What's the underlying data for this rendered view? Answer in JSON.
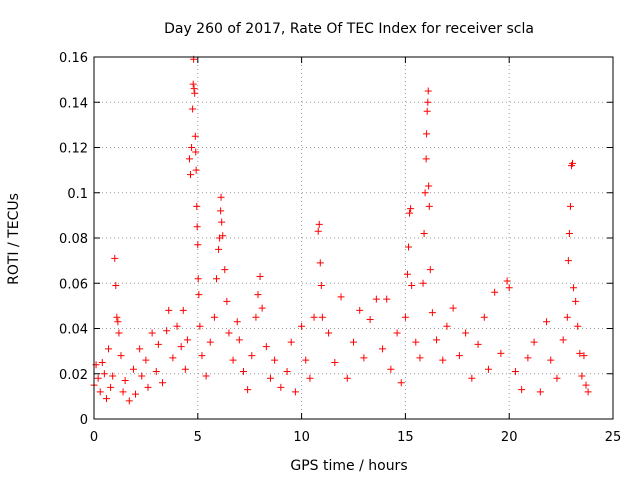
{
  "chart_data": {
    "type": "scatter",
    "title": "Day 260 of 2017, Rate Of TEC Index for receiver scla",
    "xlabel": "GPS time / hours",
    "ylabel": "ROTI / TECUs",
    "xlim": [
      0,
      25
    ],
    "ylim": [
      0,
      0.16
    ],
    "xticks": [
      "0",
      "5",
      "10",
      "15",
      "20",
      "25"
    ],
    "yticks": [
      "0",
      "0.02",
      "0.04",
      "0.06",
      "0.08",
      "0.1",
      "0.12",
      "0.14",
      "0.16"
    ],
    "grid": true,
    "legend": "none",
    "marker": "+",
    "color": "#ff0000",
    "series": [
      {
        "values": [
          [
            0.0,
            0.015
          ],
          [
            0.1,
            0.024
          ],
          [
            0.2,
            0.018
          ],
          [
            0.3,
            0.012
          ],
          [
            0.4,
            0.025
          ],
          [
            0.5,
            0.02
          ],
          [
            0.6,
            0.009
          ],
          [
            0.7,
            0.031
          ],
          [
            0.8,
            0.014
          ],
          [
            0.9,
            0.019
          ],
          [
            1.0,
            0.071
          ],
          [
            1.05,
            0.059
          ],
          [
            1.1,
            0.045
          ],
          [
            1.15,
            0.043
          ],
          [
            1.2,
            0.038
          ],
          [
            1.3,
            0.028
          ],
          [
            1.4,
            0.012
          ],
          [
            1.5,
            0.017
          ],
          [
            1.7,
            0.008
          ],
          [
            1.9,
            0.022
          ],
          [
            2.0,
            0.011
          ],
          [
            2.2,
            0.031
          ],
          [
            2.3,
            0.019
          ],
          [
            2.5,
            0.026
          ],
          [
            2.6,
            0.014
          ],
          [
            2.8,
            0.038
          ],
          [
            3.0,
            0.021
          ],
          [
            3.1,
            0.033
          ],
          [
            3.3,
            0.016
          ],
          [
            3.5,
            0.039
          ],
          [
            3.6,
            0.048
          ],
          [
            3.8,
            0.027
          ],
          [
            4.0,
            0.041
          ],
          [
            4.2,
            0.032
          ],
          [
            4.3,
            0.048
          ],
          [
            4.4,
            0.022
          ],
          [
            4.5,
            0.035
          ],
          [
            4.6,
            0.115
          ],
          [
            4.65,
            0.108
          ],
          [
            4.7,
            0.12
          ],
          [
            4.75,
            0.137
          ],
          [
            4.78,
            0.148
          ],
          [
            4.8,
            0.159
          ],
          [
            4.82,
            0.146
          ],
          [
            4.85,
            0.144
          ],
          [
            4.88,
            0.125
          ],
          [
            4.9,
            0.118
          ],
          [
            4.92,
            0.11
          ],
          [
            4.95,
            0.094
          ],
          [
            4.97,
            0.085
          ],
          [
            5.0,
            0.077
          ],
          [
            5.02,
            0.062
          ],
          [
            5.05,
            0.055
          ],
          [
            5.1,
            0.041
          ],
          [
            5.2,
            0.028
          ],
          [
            5.4,
            0.019
          ],
          [
            5.6,
            0.034
          ],
          [
            5.8,
            0.045
          ],
          [
            5.9,
            0.062
          ],
          [
            6.0,
            0.075
          ],
          [
            6.05,
            0.08
          ],
          [
            6.1,
            0.092
          ],
          [
            6.12,
            0.098
          ],
          [
            6.15,
            0.087
          ],
          [
            6.2,
            0.081
          ],
          [
            6.3,
            0.066
          ],
          [
            6.4,
            0.052
          ],
          [
            6.5,
            0.038
          ],
          [
            6.7,
            0.026
          ],
          [
            6.9,
            0.043
          ],
          [
            7.0,
            0.035
          ],
          [
            7.2,
            0.021
          ],
          [
            7.4,
            0.013
          ],
          [
            7.6,
            0.028
          ],
          [
            7.8,
            0.045
          ],
          [
            7.9,
            0.055
          ],
          [
            8.0,
            0.063
          ],
          [
            8.1,
            0.049
          ],
          [
            8.3,
            0.032
          ],
          [
            8.5,
            0.018
          ],
          [
            8.7,
            0.026
          ],
          [
            9.0,
            0.014
          ],
          [
            9.3,
            0.021
          ],
          [
            9.5,
            0.034
          ],
          [
            9.7,
            0.012
          ],
          [
            10.0,
            0.041
          ],
          [
            10.2,
            0.026
          ],
          [
            10.4,
            0.018
          ],
          [
            10.6,
            0.045
          ],
          [
            10.8,
            0.083
          ],
          [
            10.85,
            0.086
          ],
          [
            10.9,
            0.069
          ],
          [
            10.95,
            0.059
          ],
          [
            11.0,
            0.045
          ],
          [
            11.3,
            0.038
          ],
          [
            11.6,
            0.025
          ],
          [
            11.9,
            0.054
          ],
          [
            12.2,
            0.018
          ],
          [
            12.5,
            0.034
          ],
          [
            12.8,
            0.048
          ],
          [
            13.0,
            0.027
          ],
          [
            13.3,
            0.044
          ],
          [
            13.6,
            0.053
          ],
          [
            13.9,
            0.031
          ],
          [
            14.1,
            0.053
          ],
          [
            14.3,
            0.022
          ],
          [
            14.6,
            0.038
          ],
          [
            14.8,
            0.016
          ],
          [
            15.0,
            0.045
          ],
          [
            15.1,
            0.064
          ],
          [
            15.15,
            0.076
          ],
          [
            15.2,
            0.091
          ],
          [
            15.25,
            0.093
          ],
          [
            15.3,
            0.059
          ],
          [
            15.5,
            0.034
          ],
          [
            15.7,
            0.027
          ],
          [
            15.85,
            0.06
          ],
          [
            15.9,
            0.082
          ],
          [
            15.95,
            0.1
          ],
          [
            16.0,
            0.115
          ],
          [
            16.02,
            0.126
          ],
          [
            16.05,
            0.136
          ],
          [
            16.08,
            0.14
          ],
          [
            16.1,
            0.145
          ],
          [
            16.12,
            0.103
          ],
          [
            16.15,
            0.094
          ],
          [
            16.2,
            0.066
          ],
          [
            16.3,
            0.047
          ],
          [
            16.5,
            0.035
          ],
          [
            16.8,
            0.026
          ],
          [
            17.0,
            0.041
          ],
          [
            17.3,
            0.049
          ],
          [
            17.6,
            0.028
          ],
          [
            17.9,
            0.038
          ],
          [
            18.2,
            0.018
          ],
          [
            18.5,
            0.033
          ],
          [
            18.8,
            0.045
          ],
          [
            19.0,
            0.022
          ],
          [
            19.3,
            0.056
          ],
          [
            19.6,
            0.029
          ],
          [
            19.9,
            0.061
          ],
          [
            20.0,
            0.058
          ],
          [
            20.3,
            0.021
          ],
          [
            20.6,
            0.013
          ],
          [
            20.9,
            0.027
          ],
          [
            21.2,
            0.034
          ],
          [
            21.5,
            0.012
          ],
          [
            21.8,
            0.043
          ],
          [
            22.0,
            0.026
          ],
          [
            22.3,
            0.018
          ],
          [
            22.6,
            0.035
          ],
          [
            22.8,
            0.045
          ],
          [
            22.85,
            0.07
          ],
          [
            22.9,
            0.082
          ],
          [
            22.95,
            0.094
          ],
          [
            23.0,
            0.112
          ],
          [
            23.05,
            0.113
          ],
          [
            23.1,
            0.058
          ],
          [
            23.2,
            0.052
          ],
          [
            23.3,
            0.041
          ],
          [
            23.4,
            0.029
          ],
          [
            23.5,
            0.019
          ],
          [
            23.6,
            0.028
          ],
          [
            23.7,
            0.015
          ],
          [
            23.8,
            0.012
          ]
        ]
      }
    ]
  }
}
